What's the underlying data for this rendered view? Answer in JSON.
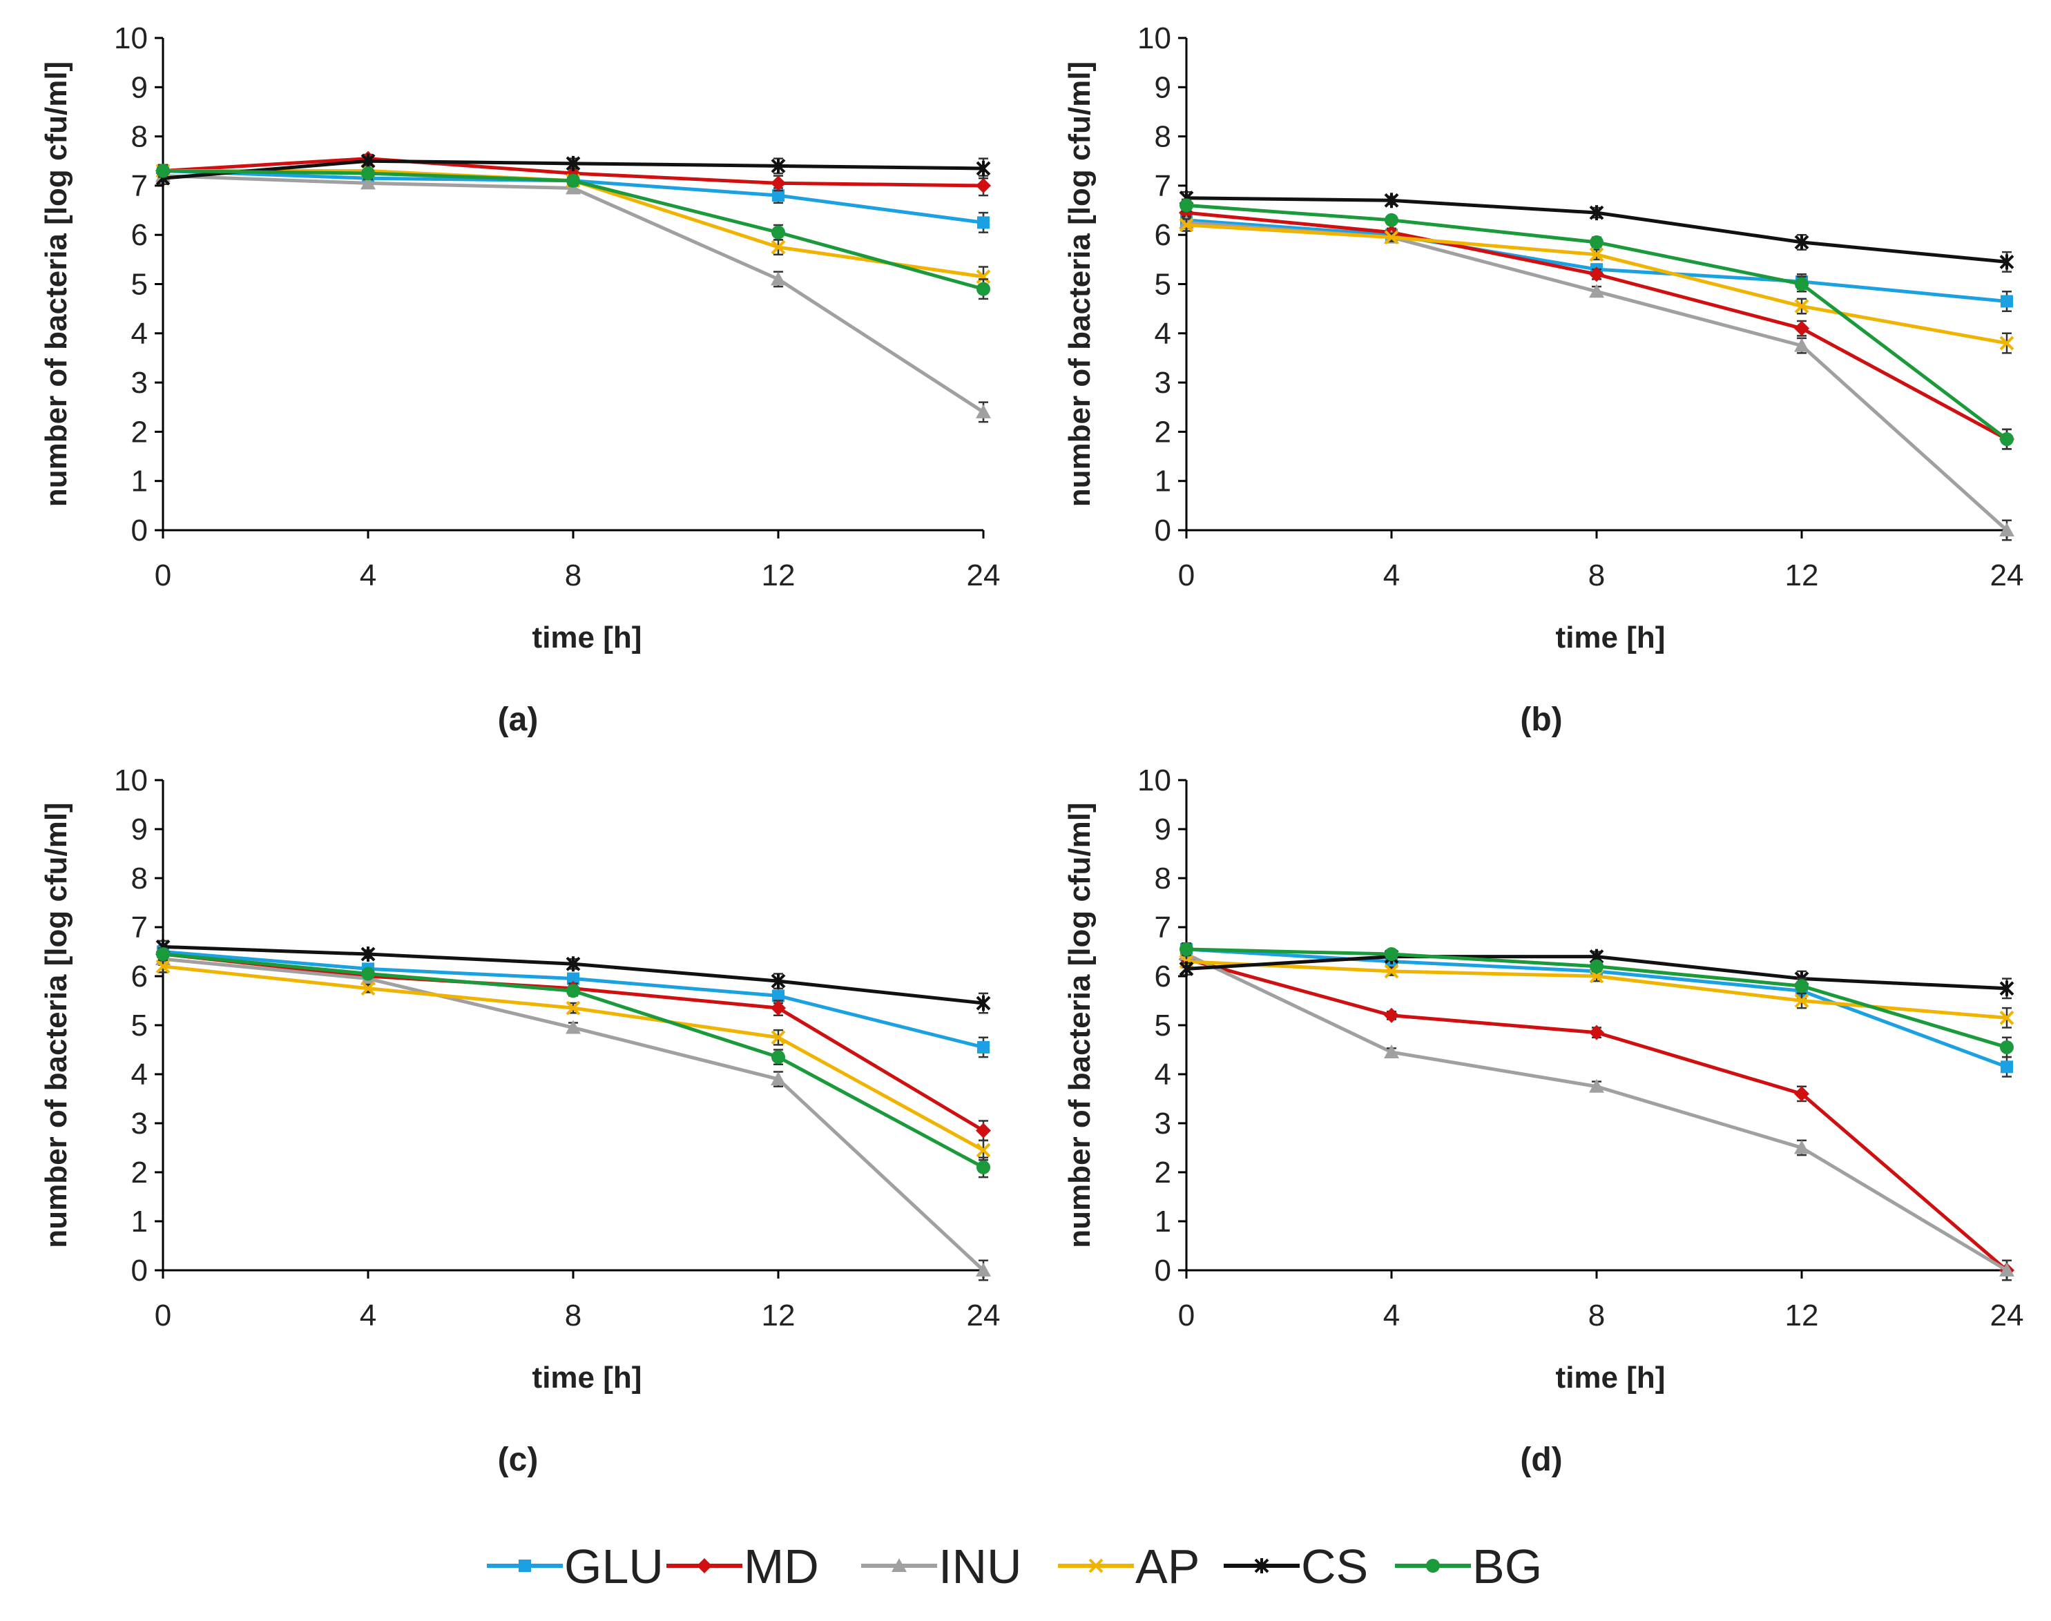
{
  "chart_data": [
    {
      "panel": "(a)",
      "type": "line",
      "xlabel": "time [h]",
      "ylabel": "number of bacteria  [log cfu/ml]",
      "categories": [
        "0",
        "4",
        "8",
        "12",
        "24"
      ],
      "yticks": [
        "0",
        "1",
        "2",
        "3",
        "4",
        "5",
        "6",
        "7",
        "8",
        "9",
        "10"
      ],
      "ylim": [
        0,
        10
      ],
      "series": [
        {
          "name": "GLU",
          "values": [
            7.3,
            7.15,
            7.1,
            6.8,
            6.25
          ]
        },
        {
          "name": "MD",
          "values": [
            7.3,
            7.55,
            7.25,
            7.05,
            7.0
          ]
        },
        {
          "name": "INU",
          "values": [
            7.2,
            7.05,
            6.95,
            5.1,
            2.4
          ]
        },
        {
          "name": "AP",
          "values": [
            7.3,
            7.3,
            7.1,
            5.75,
            5.15
          ]
        },
        {
          "name": "CS",
          "values": [
            7.15,
            7.5,
            7.45,
            7.4,
            7.35
          ]
        },
        {
          "name": "BG",
          "values": [
            7.3,
            7.25,
            7.1,
            6.05,
            4.9
          ]
        }
      ]
    },
    {
      "panel": "(b)",
      "type": "line",
      "xlabel": "time [h]",
      "ylabel": "number of bacteria  [log cfu/ml]",
      "categories": [
        "0",
        "4",
        "8",
        "12",
        "24"
      ],
      "yticks": [
        "0",
        "1",
        "2",
        "3",
        "4",
        "5",
        "6",
        "7",
        "8",
        "9",
        "10"
      ],
      "ylim": [
        0,
        10
      ],
      "series": [
        {
          "name": "GLU",
          "values": [
            6.3,
            6.0,
            5.3,
            5.05,
            4.65
          ]
        },
        {
          "name": "MD",
          "values": [
            6.45,
            6.05,
            5.2,
            4.1,
            1.85
          ]
        },
        {
          "name": "INU",
          "values": [
            6.25,
            5.95,
            4.85,
            3.75,
            0.0
          ]
        },
        {
          "name": "AP",
          "values": [
            6.2,
            5.95,
            5.6,
            4.55,
            3.8
          ]
        },
        {
          "name": "CS",
          "values": [
            6.75,
            6.7,
            6.45,
            5.85,
            5.45
          ]
        },
        {
          "name": "BG",
          "values": [
            6.6,
            6.3,
            5.85,
            5.0,
            1.85
          ]
        }
      ]
    },
    {
      "panel": "(c)",
      "type": "line",
      "xlabel": "time [h]",
      "ylabel": "number of bacteria  [log cfu/ml]",
      "categories": [
        "0",
        "4",
        "8",
        "12",
        "24"
      ],
      "yticks": [
        "0",
        "1",
        "2",
        "3",
        "4",
        "5",
        "6",
        "7",
        "8",
        "9",
        "10"
      ],
      "ylim": [
        0,
        10
      ],
      "series": [
        {
          "name": "GLU",
          "values": [
            6.5,
            6.15,
            5.95,
            5.6,
            4.55
          ]
        },
        {
          "name": "MD",
          "values": [
            6.45,
            6.0,
            5.75,
            5.35,
            2.85
          ]
        },
        {
          "name": "INU",
          "values": [
            6.35,
            5.95,
            4.95,
            3.9,
            0.0
          ]
        },
        {
          "name": "AP",
          "values": [
            6.2,
            5.75,
            5.35,
            4.75,
            2.45
          ]
        },
        {
          "name": "CS",
          "values": [
            6.6,
            6.45,
            6.25,
            5.9,
            5.45
          ]
        },
        {
          "name": "BG",
          "values": [
            6.45,
            6.05,
            5.7,
            4.35,
            2.1
          ]
        }
      ]
    },
    {
      "panel": "(d)",
      "type": "line",
      "xlabel": "time [h]",
      "ylabel": "number of bacteria  [log cfu/ml]",
      "categories": [
        "0",
        "4",
        "8",
        "12",
        "24"
      ],
      "yticks": [
        "0",
        "1",
        "2",
        "3",
        "4",
        "5",
        "6",
        "7",
        "8",
        "9",
        "10"
      ],
      "ylim": [
        0,
        10
      ],
      "series": [
        {
          "name": "GLU",
          "values": [
            6.55,
            6.3,
            6.1,
            5.7,
            4.15
          ]
        },
        {
          "name": "MD",
          "values": [
            6.35,
            5.2,
            4.85,
            3.6,
            0.0
          ]
        },
        {
          "name": "INU",
          "values": [
            6.45,
            4.45,
            3.75,
            2.5,
            0.0
          ]
        },
        {
          "name": "AP",
          "values": [
            6.3,
            6.1,
            6.0,
            5.5,
            5.15
          ]
        },
        {
          "name": "CS",
          "values": [
            6.15,
            6.4,
            6.4,
            5.95,
            5.75
          ]
        },
        {
          "name": "BG",
          "values": [
            6.55,
            6.45,
            6.2,
            5.8,
            4.55
          ]
        }
      ]
    }
  ],
  "legend": [
    {
      "name": "GLU",
      "color": "#1ba1e2",
      "marker": "square"
    },
    {
      "name": "MD",
      "color": "#d01010",
      "marker": "diamond"
    },
    {
      "name": "INU",
      "color": "#a0a0a0",
      "marker": "triangle"
    },
    {
      "name": "AP",
      "color": "#f0b400",
      "marker": "x"
    },
    {
      "name": "CS",
      "color": "#111111",
      "marker": "star"
    },
    {
      "name": "BG",
      "color": "#1a9a3a",
      "marker": "circle"
    }
  ]
}
